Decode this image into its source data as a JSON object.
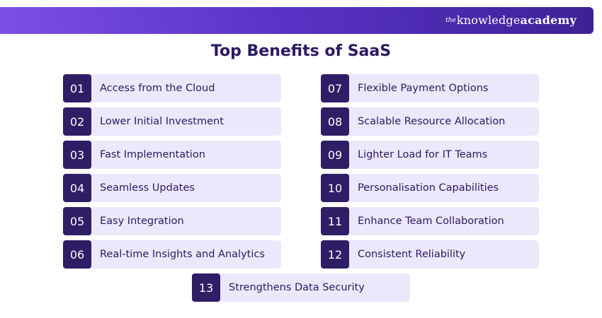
{
  "brand": {
    "prefix": "the",
    "name_part1": "knowledge",
    "name_part2": "academy"
  },
  "title": "Top Benefits of SaaS",
  "items": [
    {
      "number": "01",
      "label": "Access from the Cloud"
    },
    {
      "number": "02",
      "label": "Lower Initial Investment"
    },
    {
      "number": "03",
      "label": "Fast Implementation"
    },
    {
      "number": "04",
      "label": "Seamless Updates"
    },
    {
      "number": "05",
      "label": "Easy Integration"
    },
    {
      "number": "06",
      "label": "Real-time Insights and Analytics"
    },
    {
      "number": "07",
      "label": "Flexible Payment Options"
    },
    {
      "number": "08",
      "label": "Scalable Resource Allocation"
    },
    {
      "number": "09",
      "label": "Lighter Load for IT Teams"
    },
    {
      "number": "10",
      "label": "Personalisation Capabilities"
    },
    {
      "number": "11",
      "label": "Enhance Team Collaboration"
    },
    {
      "number": "12",
      "label": "Consistent Reliability"
    },
    {
      "number": "13",
      "label": "Strengthens Data Security"
    }
  ],
  "colors": {
    "accent_dark": "#2f1d66",
    "label_bg": "#ece8fb",
    "banner_start": "#7b4fe6",
    "banner_end": "#3f2196"
  }
}
